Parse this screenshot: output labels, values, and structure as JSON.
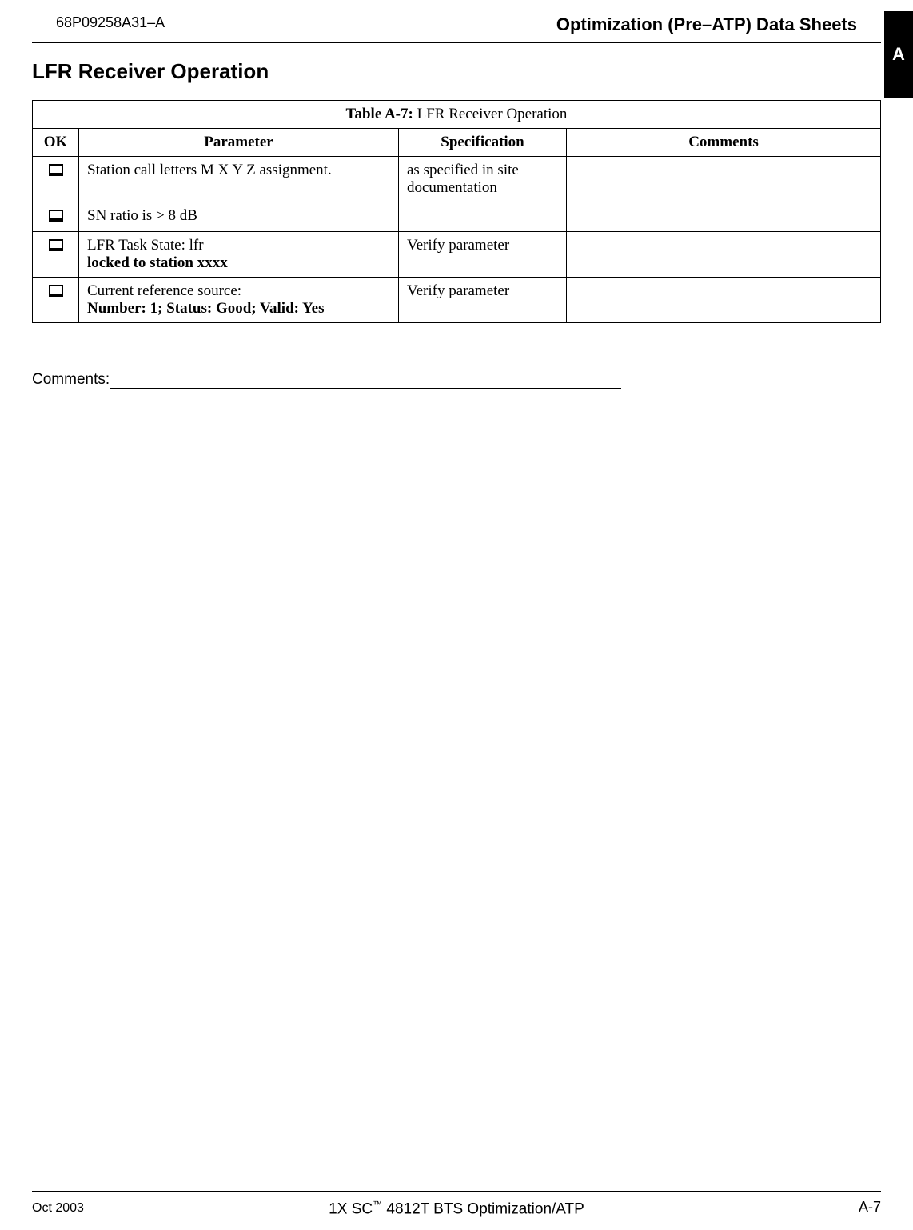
{
  "header": {
    "doc_id": "68P09258A31–A",
    "category": "Optimization (Pre–ATP) Data Sheets"
  },
  "side_tab": {
    "label": "A"
  },
  "section": {
    "title": "LFR Receiver Operation"
  },
  "table": {
    "caption_prefix": "Table A-7:",
    "caption_text": " LFR Receiver Operation",
    "headers": {
      "ok": "OK",
      "parameter": "Parameter",
      "specification": "Specification",
      "comments": "Comments"
    },
    "rows": [
      {
        "parameter": "Station call letters M X Y Z assignment.",
        "parameter_bold": "",
        "specification": "as specified in site documentation",
        "comments": ""
      },
      {
        "parameter": "SN ratio is > 8 dB",
        "parameter_bold": "",
        "specification": "",
        "comments": ""
      },
      {
        "parameter": "LFR Task State: lfr",
        "parameter_bold": "locked to station xxxx",
        "specification": "Verify parameter",
        "comments": ""
      },
      {
        "parameter": "Current reference source:",
        "parameter_bold": "Number: 1; Status: Good; Valid: Yes",
        "specification": "Verify parameter",
        "comments": ""
      }
    ]
  },
  "comments_label": "Comments:",
  "footer": {
    "left": "Oct 2003",
    "center_prefix": "1X SC",
    "center_tm": "™",
    "center_suffix": " 4812T BTS Optimization/ATP",
    "right": "A-7"
  }
}
